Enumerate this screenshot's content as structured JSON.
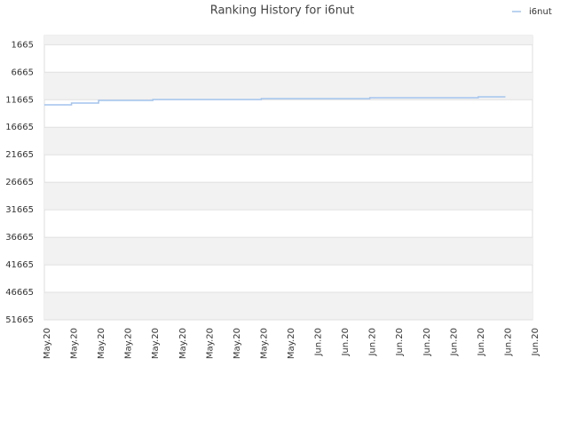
{
  "chart_data": {
    "type": "line",
    "title": "Ranking History for i6nut",
    "categories": [
      "May.20",
      "May.20",
      "May.20",
      "May.20",
      "May.20",
      "May.20",
      "May.20",
      "May.20",
      "May.20",
      "May.20",
      "Jun.20",
      "Jun.20",
      "Jun.20",
      "Jun.20",
      "Jun.20",
      "Jun.20",
      "Jun.20",
      "Jun.20",
      "Jun.20"
    ],
    "series": [
      {
        "name": "i6nut",
        "color": "#a3c4ee",
        "values": [
          12593,
          12270,
          11786,
          11786,
          11624,
          11624,
          11624,
          11624,
          11463,
          11463,
          11463,
          11463,
          11302,
          11302,
          11302,
          11302,
          11141,
          11141,
          null
        ]
      }
    ],
    "ylim": [
      0,
      51665
    ],
    "y_inverted": true,
    "yticks": [
      1665,
      6665,
      11665,
      16665,
      21665,
      26665,
      31665,
      36665,
      41665,
      46665,
      51665
    ],
    "grid": true,
    "legend": "top-right"
  }
}
